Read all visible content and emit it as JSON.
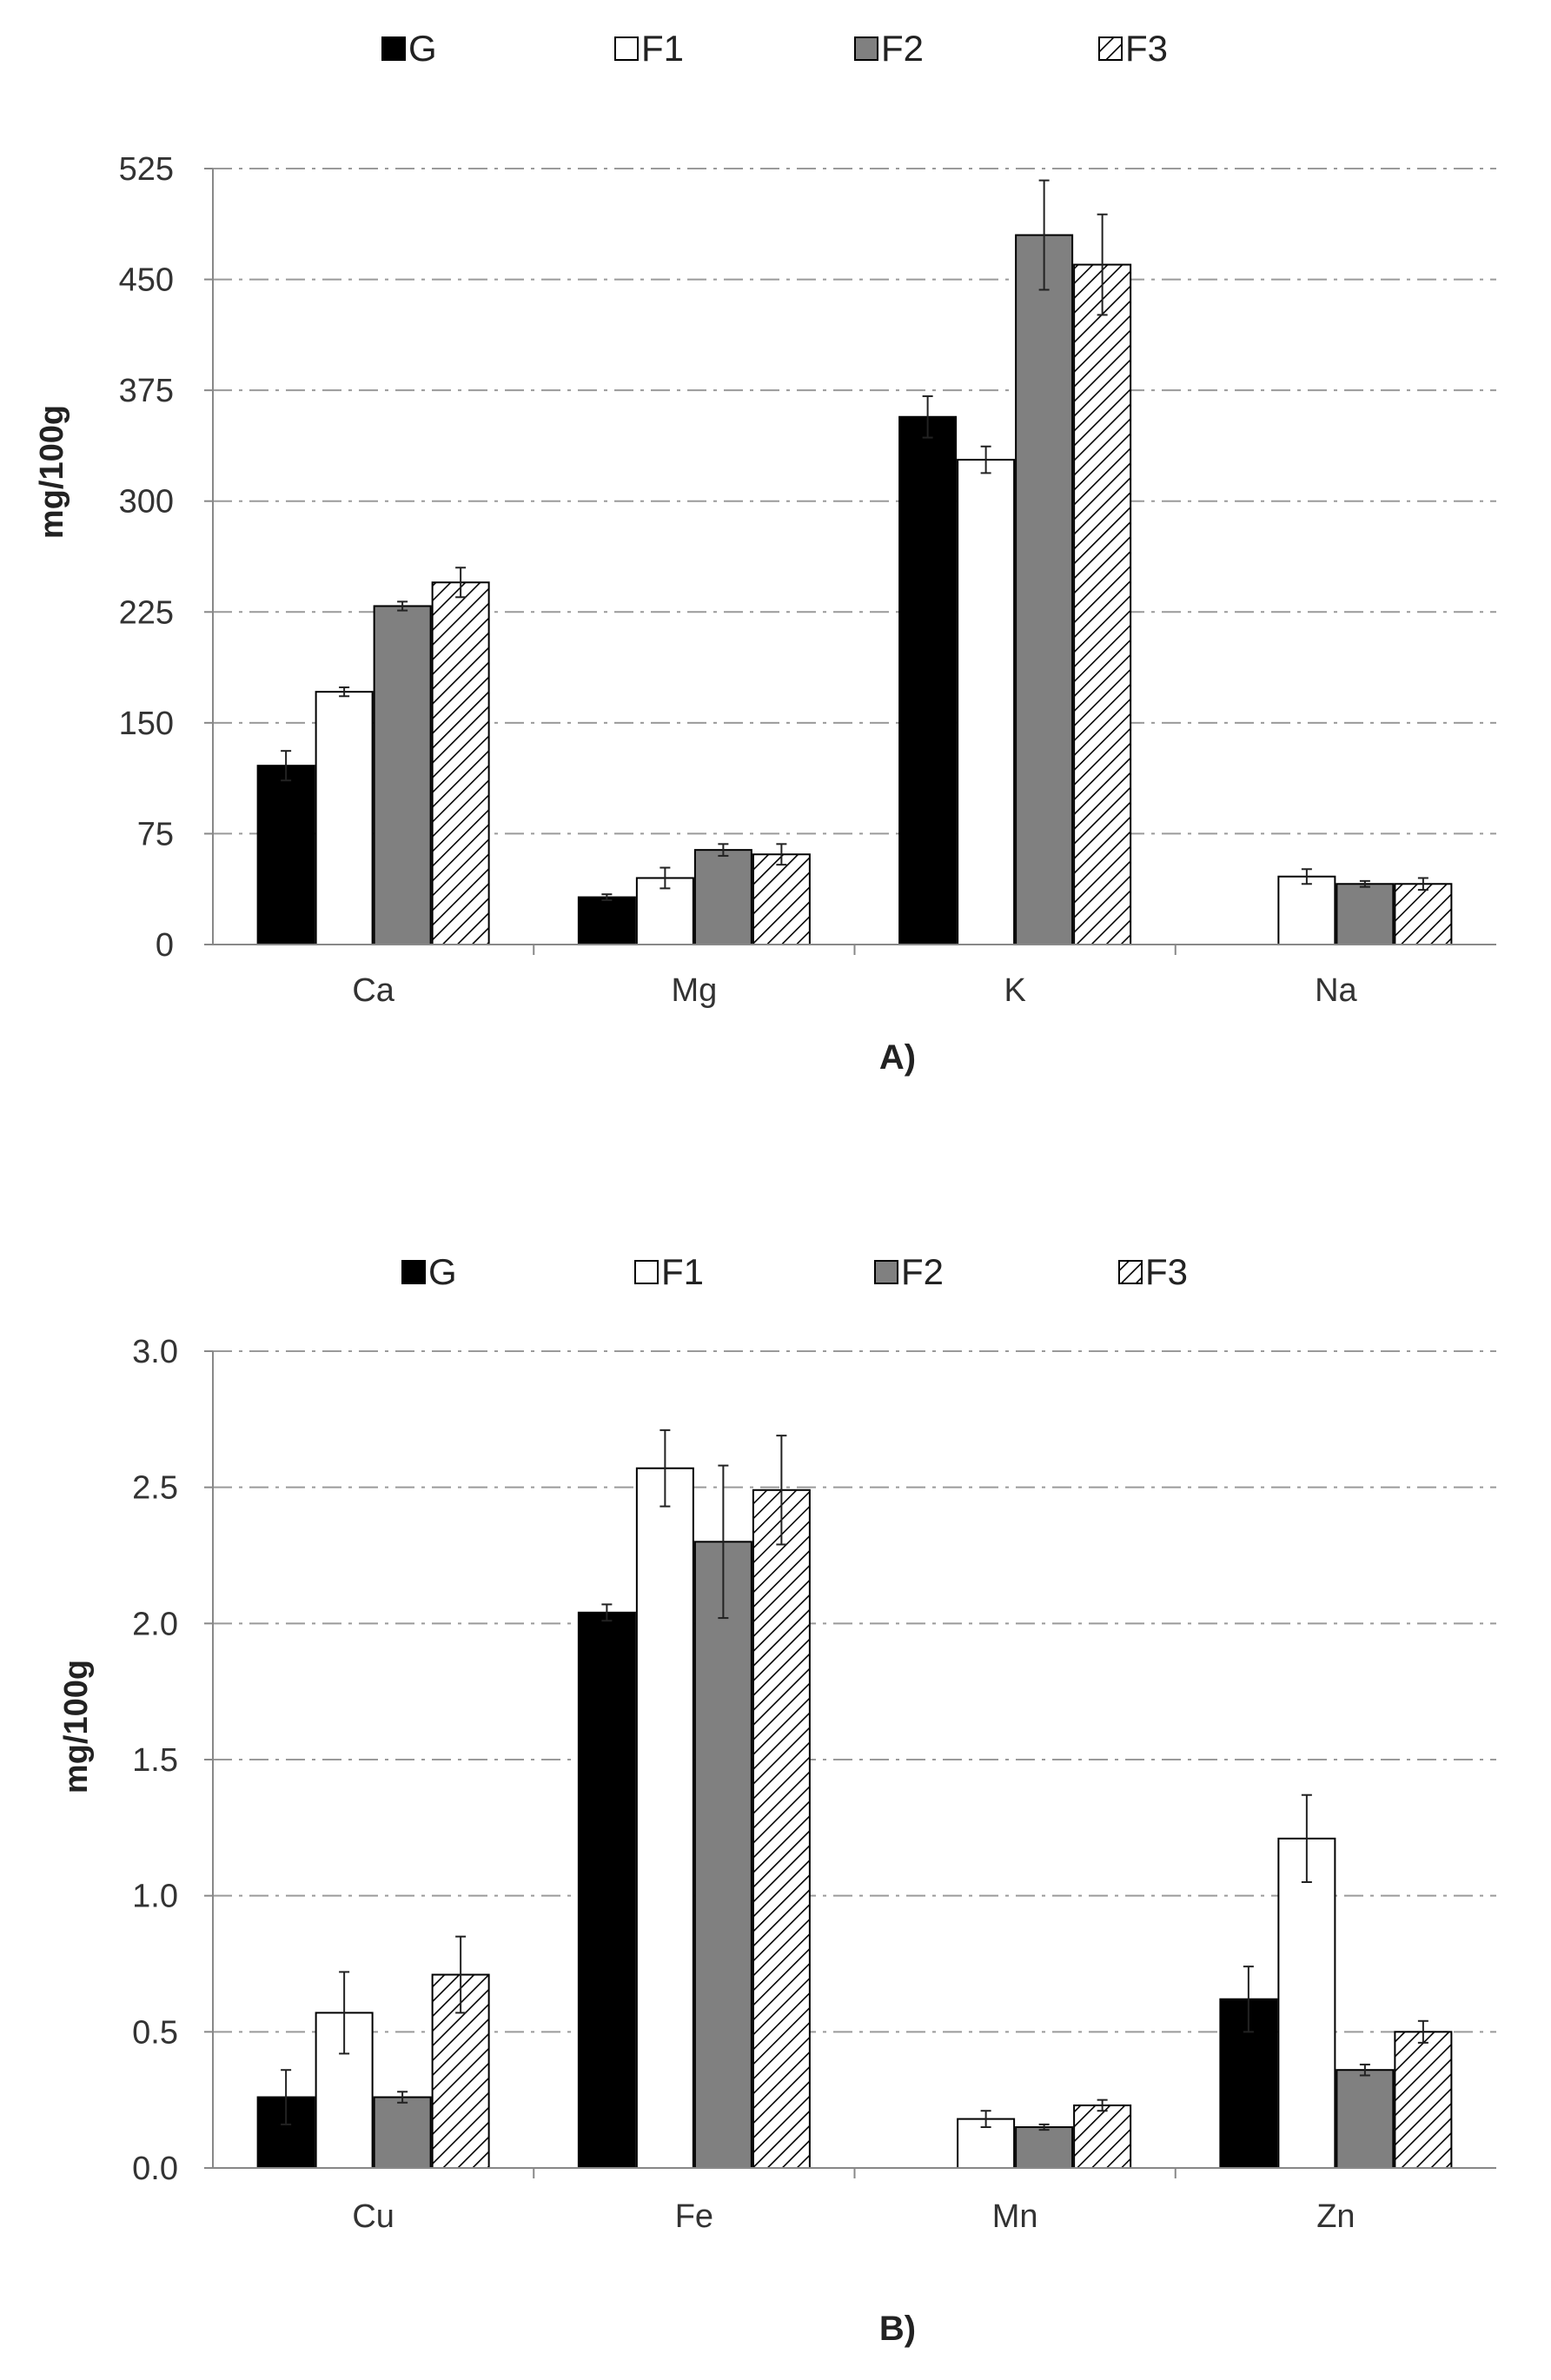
{
  "series_styles": [
    {
      "name": "G",
      "fill": "#000000"
    },
    {
      "name": "F1",
      "fill": "#ffffff"
    },
    {
      "name": "F2",
      "fill": "#808080"
    },
    {
      "name": "F3",
      "fill": "hatch"
    }
  ],
  "chart_data": [
    {
      "type": "bar",
      "panel_label": "A)",
      "ylabel": "mg/100g",
      "xlabel": "",
      "categories": [
        "Ca",
        "Mg",
        "K",
        "Na"
      ],
      "ylim": [
        0,
        525
      ],
      "yticks": [
        0,
        75,
        150,
        225,
        300,
        375,
        450,
        525
      ],
      "ytick_labels": [
        "0",
        "75",
        "150",
        "225",
        "300",
        "375",
        "450",
        "525"
      ],
      "grid": "horizontal dash-dot",
      "legend_position": "top",
      "series": [
        {
          "name": "G",
          "values": [
            121,
            32,
            357,
            null
          ],
          "errors": [
            10,
            2,
            14,
            null
          ]
        },
        {
          "name": "F1",
          "values": [
            171,
            45,
            328,
            46
          ],
          "errors": [
            3,
            7,
            9,
            5
          ]
        },
        {
          "name": "F2",
          "values": [
            229,
            64,
            480,
            41
          ],
          "errors": [
            3,
            4,
            37,
            2
          ]
        },
        {
          "name": "F3",
          "values": [
            245,
            61,
            460,
            41
          ],
          "errors": [
            10,
            7,
            34,
            4
          ]
        }
      ]
    },
    {
      "type": "bar",
      "panel_label": "B)",
      "ylabel": "mg/100g",
      "xlabel": "",
      "categories": [
        "Cu",
        "Fe",
        "Mn",
        "Zn"
      ],
      "ylim": [
        0,
        3.0
      ],
      "yticks": [
        0,
        0.5,
        1.0,
        1.5,
        2.0,
        2.5,
        3.0
      ],
      "ytick_labels": [
        "0.0",
        "0.5",
        "1.0",
        "1.5",
        "2.0",
        "2.5",
        "3.0"
      ],
      "grid": "horizontal dash-dot",
      "legend_position": "top",
      "series": [
        {
          "name": "G",
          "values": [
            0.26,
            2.04,
            null,
            0.62
          ],
          "errors": [
            0.1,
            0.03,
            null,
            0.12
          ]
        },
        {
          "name": "F1",
          "values": [
            0.57,
            2.57,
            0.18,
            1.21
          ],
          "errors": [
            0.15,
            0.14,
            0.03,
            0.16
          ]
        },
        {
          "name": "F2",
          "values": [
            0.26,
            2.3,
            0.15,
            0.36
          ],
          "errors": [
            0.02,
            0.28,
            0.01,
            0.02
          ]
        },
        {
          "name": "F3",
          "values": [
            0.71,
            2.49,
            0.23,
            0.5
          ],
          "errors": [
            0.14,
            0.2,
            0.02,
            0.04
          ]
        }
      ]
    }
  ]
}
